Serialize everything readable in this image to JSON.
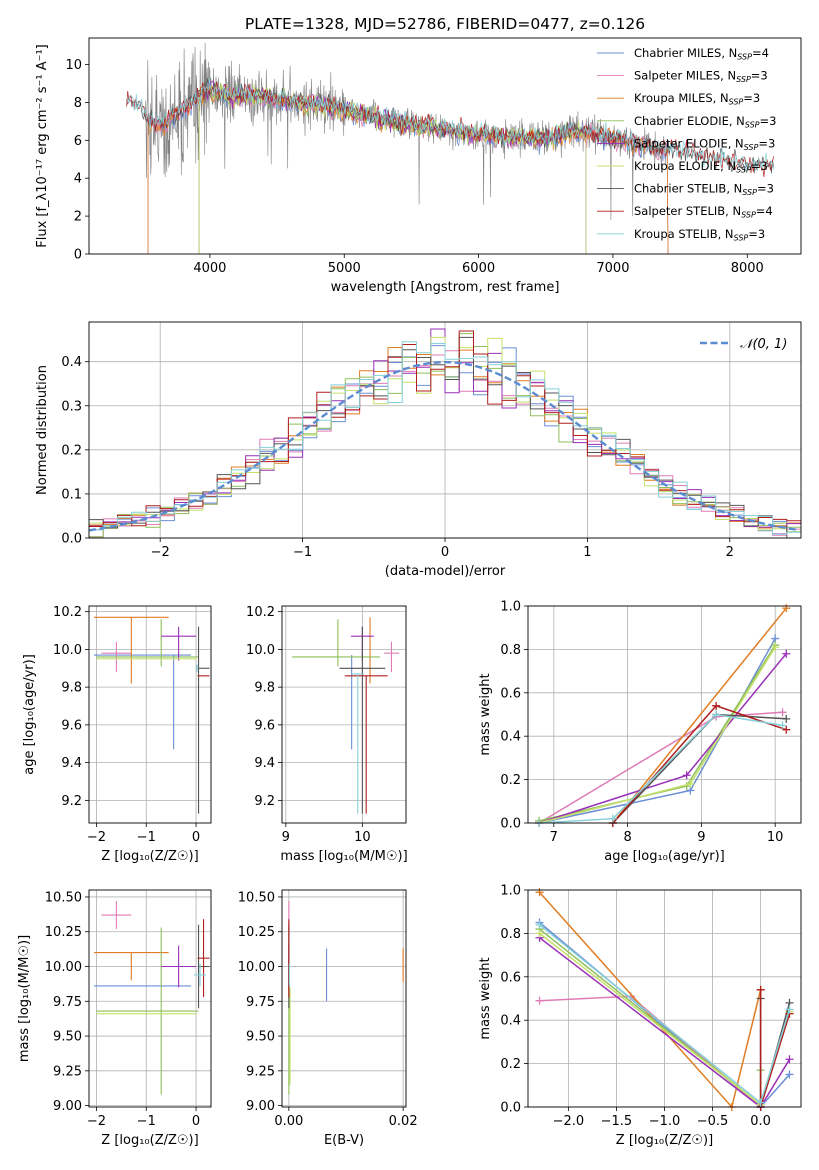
{
  "title": "PLATE=1328, MJD=52786, FIBERID=0477, z=0.126",
  "colors": {
    "chabrier_miles": "#6b8fd6",
    "salpeter_miles": "#e07bb5",
    "kroupa_miles": "#e07c22",
    "chabrier_elodie": "#8fbf5a",
    "salpeter_elodie": "#9a2fb8",
    "kroupa_elodie": "#c4e06a",
    "chabrier_stelib": "#555555",
    "salpeter_stelib": "#b01e1e",
    "kroupa_stelib": "#86d0d8",
    "data": "#808080",
    "normal": "#5b8bd0"
  },
  "chart_data": [
    {
      "id": "spectrum",
      "type": "line",
      "xlabel": "wavelength [Angstrom, rest frame]",
      "ylabel": "Flux [f_λ10⁻¹⁷ erg cm⁻² s⁻¹ A⁻¹]",
      "xlim": [
        3100,
        8400
      ],
      "ylim": [
        0,
        11.4
      ],
      "xticks": [
        "4000",
        "5000",
        "6000",
        "7000",
        "8000"
      ],
      "yticks": [
        "0",
        "2",
        "4",
        "6",
        "8",
        "10"
      ],
      "legend_position": "top-right",
      "legend": [
        {
          "label": "Chabrier MILES, N",
          "sub": "SSP",
          "suffix": "=4"
        },
        {
          "label": "Salpeter MILES, N",
          "sub": "SSP",
          "suffix": "=3"
        },
        {
          "label": "Kroupa MILES, N",
          "sub": "SSP",
          "suffix": "=3"
        },
        {
          "label": "Chabrier ELODIE, N",
          "sub": "SSP",
          "suffix": "=3"
        },
        {
          "label": "Salpeter ELODIE, N",
          "sub": "SSP",
          "suffix": "=3"
        },
        {
          "label": "Kroupa ELODIE, N",
          "sub": "SSP",
          "suffix": "=3"
        },
        {
          "label": "Chabrier STELIB, N",
          "sub": "SSP",
          "suffix": "=3"
        },
        {
          "label": "Salpeter STELIB, N",
          "sub": "SSP",
          "suffix": "=4"
        },
        {
          "label": "Kroupa STELIB, N",
          "sub": "SSP",
          "suffix": "=3"
        }
      ],
      "continuum": [
        [
          3380,
          8.2
        ],
        [
          3450,
          8.0
        ],
        [
          3550,
          7.0
        ],
        [
          3650,
          6.8
        ],
        [
          3750,
          7.4
        ],
        [
          3850,
          7.8
        ],
        [
          3950,
          8.6
        ],
        [
          4050,
          8.6
        ],
        [
          4150,
          8.3
        ],
        [
          4300,
          8.4
        ],
        [
          4500,
          8.2
        ],
        [
          4700,
          7.9
        ],
        [
          4900,
          7.8
        ],
        [
          5100,
          7.4
        ],
        [
          5300,
          7.1
        ],
        [
          5500,
          6.8
        ],
        [
          5700,
          6.6
        ],
        [
          5900,
          6.4
        ],
        [
          6100,
          6.2
        ],
        [
          6300,
          6.1
        ],
        [
          6500,
          6.1
        ],
        [
          6700,
          6.5
        ],
        [
          6900,
          6.3
        ],
        [
          7100,
          6.0
        ],
        [
          7300,
          5.6
        ],
        [
          7500,
          5.4
        ],
        [
          7700,
          5.1
        ],
        [
          7900,
          4.8
        ],
        [
          8100,
          4.6
        ],
        [
          8200,
          4.6
        ]
      ],
      "data_range": [
        3520,
        7420
      ]
    },
    {
      "id": "residuals",
      "type": "histogram",
      "xlabel": "(data-model)/error",
      "ylabel": "Normed distribution",
      "xlim": [
        -2.5,
        2.5
      ],
      "ylim": [
        0,
        0.49
      ],
      "xticks": [
        "−2",
        "−1",
        "0",
        "1",
        "2"
      ],
      "yticks": [
        "0.0",
        "0.1",
        "0.2",
        "0.3",
        "0.4"
      ],
      "legend_position": "top-right",
      "legend": "𝒩(0, 1)",
      "bin_width": 0.1,
      "grid": true
    },
    {
      "id": "age-vs-z",
      "type": "errorbar",
      "xlabel": "Z [log₁₀(Z/Z☉)]",
      "ylabel": "age  [log₁₀(age/yr)]",
      "xlim": [
        -2.15,
        0.3
      ],
      "ylim": [
        9.08,
        10.23
      ],
      "xticks": [
        "−2",
        "−1",
        "0"
      ],
      "yticks": [
        "9.2",
        "9.4",
        "9.6",
        "9.8",
        "10.0",
        "10.2"
      ],
      "grid": true,
      "points": [
        {
          "m": "chabrier_miles",
          "x": -0.45,
          "xerr": [
            1.6,
            0.35
          ],
          "y": 9.97,
          "yerr": [
            0.5,
            0.0
          ]
        },
        {
          "m": "salpeter_miles",
          "x": -1.6,
          "xerr": [
            0.3,
            0.3
          ],
          "y": 9.98,
          "yerr": [
            0.1,
            0.06
          ]
        },
        {
          "m": "kroupa_miles",
          "x": -1.3,
          "xerr": [
            0.75,
            0.75
          ],
          "y": 10.17,
          "yerr": [
            0.35,
            0.0
          ]
        },
        {
          "m": "chabrier_elodie",
          "x": -0.7,
          "xerr": [
            1.3,
            0.75
          ],
          "y": 9.96,
          "yerr": [
            0.05,
            0.2
          ]
        },
        {
          "m": "salpeter_elodie",
          "x": -0.35,
          "xerr": [
            0.35,
            0.35
          ],
          "y": 10.07,
          "yerr": [
            0.13,
            0.05
          ]
        },
        {
          "m": "kroupa_elodie",
          "x": -0.7,
          "xerr": [
            1.3,
            0.7
          ],
          "y": 9.95,
          "yerr": [
            0.0,
            0.0
          ]
        },
        {
          "m": "chabrier_stelib",
          "x": 0.05,
          "xerr": [
            0.0,
            0.22
          ],
          "y": 9.9,
          "yerr": [
            0.77,
            0.22
          ]
        },
        {
          "m": "salpeter_stelib",
          "x": 0.15,
          "xerr": [
            0.12,
            0.12
          ],
          "y": 9.86,
          "yerr": [
            0.0,
            0.0
          ]
        },
        {
          "m": "kroupa_stelib",
          "x": 0.02,
          "xerr": [
            0.02,
            0.02
          ],
          "y": 9.9,
          "yerr": [
            0.02,
            0.02
          ]
        }
      ]
    },
    {
      "id": "age-vs-mass",
      "type": "errorbar",
      "xlabel": "mass [log₁₀(M/M☉)]",
      "ylabel": "",
      "xlim": [
        8.95,
        10.57
      ],
      "ylim": [
        9.08,
        10.23
      ],
      "xticks": [
        "9",
        "10"
      ],
      "yticks": [
        "9.2",
        "9.4",
        "9.6",
        "9.8",
        "10.0",
        "10.2"
      ],
      "grid": true,
      "points": [
        {
          "m": "chabrier_miles",
          "x": 9.86,
          "xerr": [
            0.0,
            0.0
          ],
          "y": 9.97,
          "yerr": [
            0.5,
            0.0
          ]
        },
        {
          "m": "salpeter_miles",
          "x": 10.38,
          "xerr": [
            0.1,
            0.1
          ],
          "y": 9.98,
          "yerr": [
            0.1,
            0.06
          ]
        },
        {
          "m": "kroupa_miles",
          "x": 10.1,
          "xerr": [
            0.0,
            0.0
          ],
          "y": 10.17,
          "yerr": [
            0.35,
            0.0
          ]
        },
        {
          "m": "chabrier_elodie",
          "x": 9.68,
          "xerr": [
            0.6,
            0.55
          ],
          "y": 9.96,
          "yerr": [
            0.05,
            0.2
          ]
        },
        {
          "m": "salpeter_elodie",
          "x": 10.0,
          "xerr": [
            0.15,
            0.15
          ],
          "y": 10.07,
          "yerr": [
            0.13,
            0.05
          ]
        },
        {
          "m": "kroupa_elodie",
          "x": 9.68,
          "xerr": [
            0.0,
            0.0
          ],
          "y": 9.95,
          "yerr": [
            0.0,
            0.0
          ]
        },
        {
          "m": "chabrier_stelib",
          "x": 10.0,
          "xerr": [
            0.3,
            0.3
          ],
          "y": 9.9,
          "yerr": [
            0.77,
            0.22
          ]
        },
        {
          "m": "salpeter_stelib",
          "x": 10.05,
          "xerr": [
            0.28,
            0.28
          ],
          "y": 9.86,
          "yerr": [
            0.73,
            0.0
          ]
        },
        {
          "m": "kroupa_stelib",
          "x": 9.94,
          "xerr": [
            0.08,
            0.08
          ],
          "y": 9.87,
          "yerr": [
            0.74,
            0.0
          ]
        }
      ]
    },
    {
      "id": "mass-weight-vs-age",
      "type": "line",
      "xlabel": "age  [log₁₀(age/yr)]",
      "ylabel": "mass weight",
      "xlim": [
        6.65,
        10.35
      ],
      "ylim": [
        0,
        1.0
      ],
      "xticks": [
        "7",
        "8",
        "9",
        "10"
      ],
      "yticks": [
        "0.0",
        "0.2",
        "0.4",
        "0.6",
        "0.8",
        "1.0"
      ],
      "grid": true,
      "series": [
        {
          "m": "chabrier_miles",
          "x": [
            6.8,
            8.85,
            10.0
          ],
          "y": [
            0.0,
            0.15,
            0.85
          ]
        },
        {
          "m": "salpeter_miles",
          "x": [
            6.8,
            9.2,
            10.1
          ],
          "y": [
            0.0,
            0.49,
            0.51
          ]
        },
        {
          "m": "kroupa_miles",
          "x": [
            7.8,
            10.15
          ],
          "y": [
            0.0,
            0.99
          ]
        },
        {
          "m": "chabrier_elodie",
          "x": [
            6.8,
            8.8,
            10.0
          ],
          "y": [
            0.01,
            0.17,
            0.82
          ]
        },
        {
          "m": "salpeter_elodie",
          "x": [
            6.8,
            8.8,
            10.15
          ],
          "y": [
            0.0,
            0.22,
            0.78
          ]
        },
        {
          "m": "kroupa_elodie",
          "x": [
            6.8,
            8.85,
            10.0
          ],
          "y": [
            0.0,
            0.18,
            0.81
          ]
        },
        {
          "m": "chabrier_stelib",
          "x": [
            7.8,
            9.2,
            10.15
          ],
          "y": [
            0.0,
            0.5,
            0.48
          ]
        },
        {
          "m": "salpeter_stelib",
          "x": [
            7.8,
            9.2,
            10.15
          ],
          "y": [
            0.0,
            0.54,
            0.43
          ]
        },
        {
          "m": "kroupa_stelib",
          "x": [
            6.8,
            7.8,
            9.2,
            10.1
          ],
          "y": [
            0.0,
            0.02,
            0.5,
            0.45
          ]
        }
      ]
    },
    {
      "id": "mass-vs-z",
      "type": "errorbar",
      "xlabel": "Z [log₁₀(Z/Z☉)]",
      "ylabel": "mass [log₁₀(M/M☉)]",
      "xlim": [
        -2.15,
        0.3
      ],
      "ylim": [
        8.99,
        10.55
      ],
      "xticks": [
        "−2",
        "−1",
        "0"
      ],
      "yticks": [
        "9.00",
        "9.25",
        "9.50",
        "9.75",
        "10.00",
        "10.25",
        "10.50"
      ],
      "grid": true,
      "points": [
        {
          "m": "chabrier_miles",
          "x": -0.45,
          "xerr": [
            1.6,
            0.35
          ],
          "y": 9.86,
          "yerr": [
            0.0,
            0.0
          ]
        },
        {
          "m": "salpeter_miles",
          "x": -1.6,
          "xerr": [
            0.3,
            0.3
          ],
          "y": 10.37,
          "yerr": [
            0.1,
            0.1
          ]
        },
        {
          "m": "kroupa_miles",
          "x": -1.3,
          "xerr": [
            0.75,
            0.75
          ],
          "y": 10.1,
          "yerr": [
            0.2,
            0.0
          ]
        },
        {
          "m": "chabrier_elodie",
          "x": -0.7,
          "xerr": [
            1.3,
            0.75
          ],
          "y": 9.68,
          "yerr": [
            0.6,
            0.6
          ]
        },
        {
          "m": "salpeter_elodie",
          "x": -0.35,
          "xerr": [
            0.35,
            0.35
          ],
          "y": 10.0,
          "yerr": [
            0.15,
            0.15
          ]
        },
        {
          "m": "kroupa_elodie",
          "x": -0.7,
          "xerr": [
            1.3,
            0.7
          ],
          "y": 9.66,
          "yerr": [
            0.0,
            0.0
          ]
        },
        {
          "m": "chabrier_stelib",
          "x": 0.05,
          "xerr": [
            0.0,
            0.22
          ],
          "y": 10.0,
          "yerr": [
            0.3,
            0.3
          ]
        },
        {
          "m": "salpeter_stelib",
          "x": 0.15,
          "xerr": [
            0.12,
            0.12
          ],
          "y": 10.06,
          "yerr": [
            0.28,
            0.28
          ]
        },
        {
          "m": "kroupa_stelib",
          "x": 0.08,
          "xerr": [
            0.12,
            0.12
          ],
          "y": 9.94,
          "yerr": [
            0.08,
            0.08
          ]
        }
      ]
    },
    {
      "id": "mass-vs-ebv",
      "type": "errorbar",
      "xlabel": "E(B-V)",
      "ylabel": "",
      "xlim": [
        -0.0012,
        0.0205
      ],
      "ylim": [
        8.99,
        10.55
      ],
      "xticks": [
        "0.00",
        "0.02"
      ],
      "yticks": [
        "9.00",
        "9.25",
        "9.50",
        "9.75",
        "10.00",
        "10.25",
        "10.50"
      ],
      "grid": true,
      "points": [
        {
          "m": "chabrier_miles",
          "x": 0.0066,
          "xerr": [
            0,
            0
          ],
          "y": 9.94,
          "yerr": [
            0.19,
            0.19
          ]
        },
        {
          "m": "salpeter_miles",
          "x": 0.0,
          "xerr": [
            0,
            0
          ],
          "y": 10.37,
          "yerr": [
            0.1,
            0.1
          ]
        },
        {
          "m": "kroupa_miles",
          "x": 0.02,
          "xerr": [
            0,
            0
          ],
          "y": 10.01,
          "yerr": [
            0.12,
            0.12
          ]
        },
        {
          "m": "chabrier_elodie",
          "x": 0.0,
          "xerr": [
            0,
            0
          ],
          "y": 9.68,
          "yerr": [
            0.6,
            0.6
          ]
        },
        {
          "m": "salpeter_elodie",
          "x": 0.0,
          "xerr": [
            0,
            0
          ],
          "y": 10.0,
          "yerr": [
            0.15,
            0.15
          ]
        },
        {
          "m": "kroupa_elodie",
          "x": 0.0002,
          "xerr": [
            0,
            0
          ],
          "y": 9.5,
          "yerr": [
            0.35,
            0.35
          ]
        },
        {
          "m": "chabrier_stelib",
          "x": 0.0,
          "xerr": [
            0,
            0
          ],
          "y": 10.0,
          "yerr": [
            0.3,
            0.3
          ]
        },
        {
          "m": "salpeter_stelib",
          "x": 0.0,
          "xerr": [
            0,
            0
          ],
          "y": 10.06,
          "yerr": [
            0.28,
            0.28
          ]
        },
        {
          "m": "kroupa_stelib",
          "x": 0.0001,
          "xerr": [
            0,
            0
          ],
          "y": 9.94,
          "yerr": [
            0.08,
            0.08
          ]
        }
      ]
    },
    {
      "id": "mass-weight-vs-z",
      "type": "line",
      "xlabel": "Z [log₁₀(Z/Z☉)]",
      "ylabel": "mass weight",
      "xlim": [
        -2.42,
        0.42
      ],
      "ylim": [
        0,
        1.0
      ],
      "xticks": [
        "−2.0",
        "−1.5",
        "−1.0",
        "−0.5",
        "0.0"
      ],
      "yticks": [
        "0.0",
        "0.2",
        "0.4",
        "0.6",
        "0.8",
        "1.0"
      ],
      "grid": true,
      "series": [
        {
          "m": "chabrier_miles",
          "x": [
            -2.3,
            0.0,
            0.3
          ],
          "y": [
            0.85,
            0.0,
            0.15
          ]
        },
        {
          "m": "salpeter_miles",
          "x": [
            -2.3,
            -1.35,
            0.0
          ],
          "y": [
            0.49,
            0.51,
            0.0
          ]
        },
        {
          "m": "kroupa_miles",
          "x": [
            -2.3,
            -0.3,
            0.0
          ],
          "y": [
            0.99,
            0.0,
            0.54
          ]
        },
        {
          "m": "chabrier_elodie",
          "x": [
            -2.3,
            0.0,
            0.0
          ],
          "y": [
            0.82,
            0.01,
            0.17
          ]
        },
        {
          "m": "salpeter_elodie",
          "x": [
            -2.3,
            0.0,
            0.3
          ],
          "y": [
            0.78,
            0.0,
            0.22
          ]
        },
        {
          "m": "kroupa_elodie",
          "x": [
            -2.3,
            0.0,
            0.3
          ],
          "y": [
            0.8,
            0.01,
            0.44
          ]
        },
        {
          "m": "chabrier_stelib",
          "x": [
            0.0,
            0.0,
            0.3
          ],
          "y": [
            0.5,
            0.0,
            0.48
          ]
        },
        {
          "m": "salpeter_stelib",
          "x": [
            0.0,
            0.0,
            0.3
          ],
          "y": [
            0.54,
            0.0,
            0.43
          ]
        },
        {
          "m": "kroupa_stelib",
          "x": [
            -2.3,
            0.0,
            0.3
          ],
          "y": [
            0.84,
            0.02,
            0.45
          ]
        }
      ]
    }
  ]
}
